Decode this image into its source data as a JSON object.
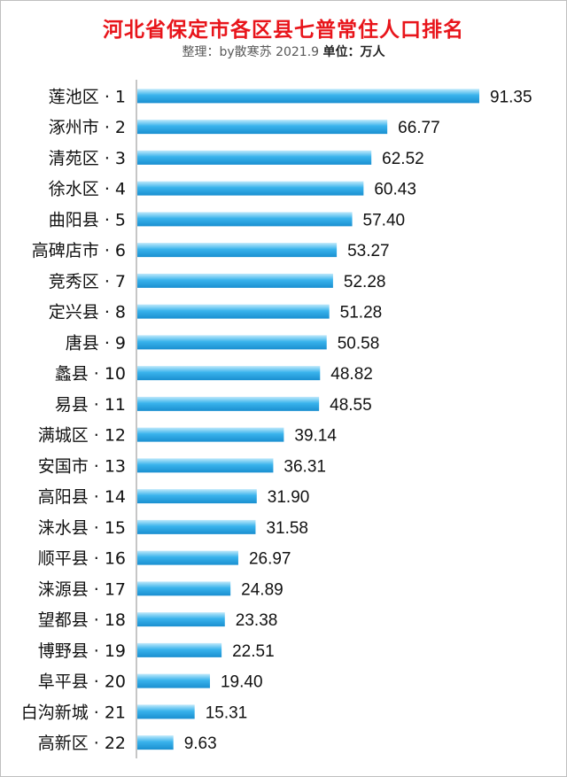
{
  "title": "河北省保定市各区县七普常住人口排名",
  "subtitle_credit": "整理：by散寒苏 2021.9 ",
  "subtitle_unit": "单位：万人",
  "colors": {
    "title": "#e8151b",
    "bar_light": "#bfe9fb",
    "bar_main": "#39b3ec",
    "bar_dark": "#1a8fd0"
  },
  "chart_data": {
    "type": "bar",
    "orientation": "horizontal",
    "title": "河北省保定市各区县七普常住人口排名",
    "subtitle": "整理：by散寒苏 2021.9 单位：万人",
    "categories": [
      "莲池区 · 1",
      "涿州市 · 2",
      "清苑区 · 3",
      "徐水区 · 4",
      "曲阳县 · 5",
      "高碑店市 · 6",
      "竞秀区 · 7",
      "定兴县 · 8",
      "唐县 · 9",
      "蠡县 · 10",
      "易县 · 11",
      "满城区 · 12",
      "安国市 · 13",
      "高阳县 · 14",
      "涞水县 · 15",
      "顺平县 · 16",
      "涞源县 · 17",
      "望都县 · 18",
      "博野县 · 19",
      "阜平县 · 20",
      "白沟新城 · 21",
      "高新区 · 22"
    ],
    "values": [
      91.35,
      66.77,
      62.52,
      60.43,
      57.4,
      53.27,
      52.28,
      51.28,
      50.58,
      48.82,
      48.55,
      39.14,
      36.31,
      31.9,
      31.58,
      26.97,
      24.89,
      23.38,
      22.51,
      19.4,
      15.31,
      9.63
    ],
    "value_labels": [
      "91.35",
      "66.77",
      "62.52",
      "60.43",
      "57.40",
      "53.27",
      "52.28",
      "51.28",
      "50.58",
      "48.82",
      "48.55",
      "39.14",
      "36.31",
      "31.90",
      "31.58",
      "26.97",
      "24.89",
      "23.38",
      "22.51",
      "19.40",
      "15.31",
      "9.63"
    ],
    "unit": "万人",
    "xlim": [
      0,
      91.35
    ],
    "grid": false,
    "legend": "none"
  }
}
